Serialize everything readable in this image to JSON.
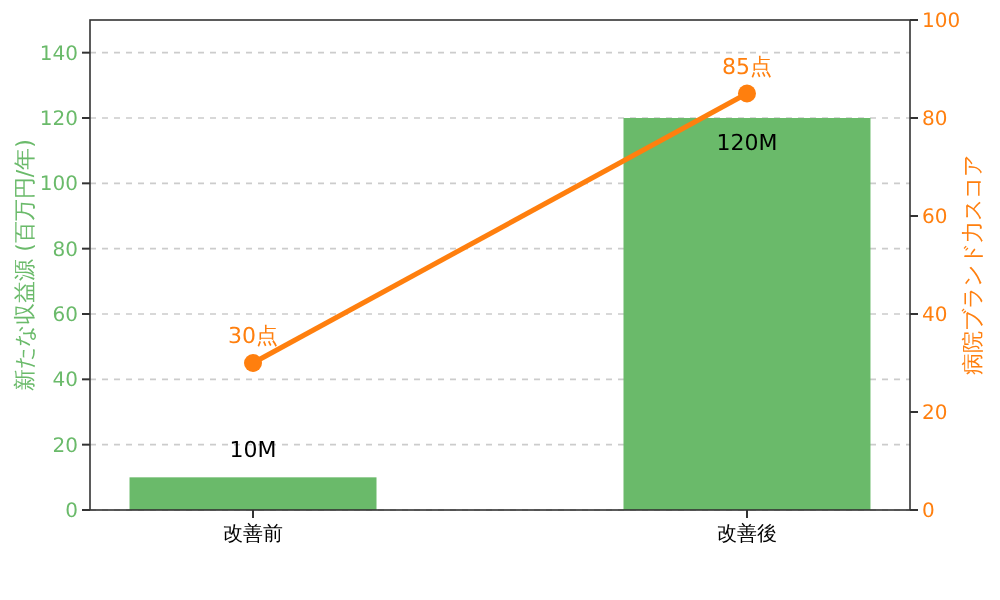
{
  "chart_data": {
    "type": "bar",
    "categories": [
      "改善前",
      "改善後"
    ],
    "series": [
      {
        "color": "#6aba6a",
        "values": [
          10,
          120
        ],
        "value_labels": [
          "10M",
          "120M"
        ]
      },
      {
        "type": "line",
        "axis": "y2",
        "color": "#ff7f0e",
        "values": [
          30,
          85
        ],
        "value_labels": [
          "30点",
          "85点"
        ]
      }
    ],
    "ylabel": "新たな収益源 (百万円/年)",
    "y2label": "病院ブランド力スコア",
    "ylim": [
      0,
      150
    ],
    "yticks": [
      0,
      20,
      40,
      60,
      80,
      100,
      120,
      140
    ],
    "y2lim": [
      0,
      100
    ],
    "y2ticks": [
      0,
      20,
      40,
      60,
      80,
      100
    ],
    "grid": "y",
    "marker": "circle",
    "line_style": "solid"
  }
}
